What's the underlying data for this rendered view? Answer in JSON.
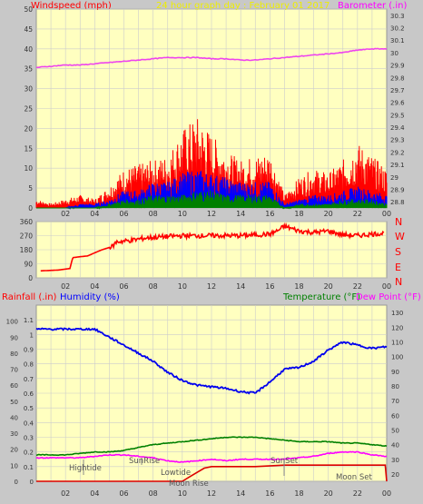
{
  "header": {
    "left_label": "Windspeed (mph)",
    "center_label": "24 hour graph day : February 01 2017",
    "right_label": "Barometer (.in)"
  },
  "colors": {
    "background": "#c8c8c8",
    "plot_bg": "#ffffc0",
    "grid": "#cccccc",
    "wind": "#ff0000",
    "gust_mid": "#0000ff",
    "wind_low": "#008000",
    "barometer": "#ee44ee",
    "humidity": "#0000ee",
    "temperature": "#008000",
    "dewpoint": "#ff00ff",
    "rainfall": "#dd0000",
    "label_red": "#ff0000",
    "label_yellow": "#eeee00",
    "label_magenta": "#ff00ff",
    "label_blue": "#0000ff",
    "label_green": "#008000"
  },
  "x_ticks": [
    "02",
    "04",
    "06",
    "08",
    "10",
    "12",
    "14",
    "16",
    "18",
    "20",
    "22",
    "00"
  ],
  "panel1": {
    "left_ticks": [
      "0",
      "5",
      "10",
      "15",
      "20",
      "25",
      "30",
      "35",
      "40",
      "45",
      "50"
    ],
    "right_ticks": [
      "28.8",
      "28.9",
      "29",
      "29.1",
      "29.2",
      "29.3",
      "29.4",
      "29.5",
      "29.6",
      "29.7",
      "29.8",
      "29.9",
      "30",
      "30.1",
      "30.2",
      "30.3"
    ]
  },
  "panel2": {
    "left_ticks": [
      "0",
      "90",
      "180",
      "270",
      "360"
    ],
    "compass": [
      "N",
      "W",
      "S",
      "E",
      "N"
    ]
  },
  "panel3": {
    "labels": {
      "rainfall": "Rainfall (.in)",
      "humidity": "Humidity (%)",
      "temperature": "Temperature (°F)",
      "dewpoint": "Dew Point (°F)"
    },
    "humidity_ticks": [
      "0",
      "10",
      "20",
      "30",
      "40",
      "50",
      "60",
      "70",
      "80",
      "90",
      "100"
    ],
    "rain_ticks": [
      "0",
      "0.1",
      "0.2",
      "0.3",
      "0.4",
      "0.5",
      "0.6",
      "0.7",
      "0.8",
      "0.9",
      "1",
      "1.1"
    ],
    "temp_ticks": [
      "20",
      "30",
      "40",
      "50",
      "60",
      "70",
      "80",
      "90",
      "100",
      "110",
      "120",
      "130"
    ],
    "annotations": {
      "hightide": "Hightide",
      "sunrise": "SunRise",
      "lowtide": "Lowtide",
      "moonrise": "Moon Rise",
      "sunset": "SunSet",
      "moonset": "Moon Set"
    }
  },
  "chart_data": [
    {
      "type": "line",
      "x_label": "hour",
      "y_left_label": "Windspeed (mph)",
      "y_right_label": "Barometer (.in)",
      "ylim_left": [
        0,
        50
      ],
      "ylim_right": [
        28.75,
        30.35
      ],
      "series": [
        {
          "name": "Barometer",
          "x": [
            0,
            1,
            2,
            3,
            4,
            5,
            6,
            7,
            8,
            9,
            10,
            11,
            12,
            13,
            14,
            15,
            16,
            17,
            18,
            19,
            20,
            21,
            22,
            23,
            24
          ],
          "values": [
            29.88,
            29.89,
            29.9,
            29.9,
            29.91,
            29.92,
            29.93,
            29.94,
            29.95,
            29.96,
            29.96,
            29.96,
            29.95,
            29.95,
            29.94,
            29.94,
            29.95,
            29.96,
            29.97,
            29.98,
            29.99,
            30.0,
            30.02,
            30.03,
            30.03
          ]
        },
        {
          "name": "Windspeed (peak)",
          "x": [
            0,
            1,
            2,
            3,
            4,
            5,
            6,
            7,
            8,
            9,
            10,
            11,
            12,
            13,
            14,
            15,
            16,
            17,
            18,
            19,
            20,
            21,
            22,
            23,
            24
          ],
          "values": [
            2,
            1,
            2,
            3,
            2,
            5,
            9,
            10,
            11,
            12,
            18,
            21,
            17,
            13,
            11,
            12,
            13,
            3,
            7,
            9,
            8,
            11,
            15,
            12,
            9
          ]
        },
        {
          "name": "Windspeed (average)",
          "x": [
            0,
            1,
            2,
            3,
            4,
            5,
            6,
            7,
            8,
            9,
            10,
            11,
            12,
            13,
            14,
            15,
            16,
            17,
            18,
            19,
            20,
            21,
            22,
            23,
            24
          ],
          "values": [
            0,
            0,
            0,
            1,
            1,
            2,
            4,
            4,
            6,
            6,
            8,
            9,
            8,
            7,
            6,
            6,
            6,
            1,
            2,
            3,
            3,
            4,
            5,
            4,
            3
          ]
        },
        {
          "name": "Windspeed (low)",
          "x": [
            0,
            1,
            2,
            3,
            4,
            5,
            6,
            7,
            8,
            9,
            10,
            11,
            12,
            13,
            14,
            15,
            16,
            17,
            18,
            19,
            20,
            21,
            22,
            23,
            24
          ],
          "values": [
            0,
            0,
            0,
            0,
            0,
            1,
            2,
            2,
            3,
            3,
            3,
            4,
            4,
            3,
            3,
            3,
            3,
            0,
            1,
            1,
            1,
            2,
            2,
            2,
            1
          ]
        }
      ]
    },
    {
      "type": "line",
      "y_label": "Wind direction",
      "ylim": [
        0,
        360
      ],
      "series": [
        {
          "name": "Wind direction",
          "x": [
            0.3,
            1.5,
            2.3,
            2.5,
            3.5,
            4.5,
            5.2,
            5.5,
            6.5,
            7.5,
            8.5,
            10,
            12,
            14,
            16,
            16.5,
            17,
            18,
            19,
            20,
            21,
            22,
            23,
            23.8
          ],
          "values": [
            45,
            50,
            60,
            130,
            140,
            180,
            200,
            230,
            240,
            255,
            262,
            270,
            270,
            270,
            280,
            300,
            330,
            300,
            290,
            300,
            275,
            270,
            280,
            285
          ]
        }
      ]
    },
    {
      "type": "line",
      "y_left_label": "Humidity (%)",
      "y_left2_label": "Rainfall (.in)",
      "y_right_label": "Temperature (°F)",
      "ylim_humidity": [
        0,
        100
      ],
      "ylim_rain": [
        0,
        1.1
      ],
      "ylim_temp": [
        20,
        130
      ],
      "series": [
        {
          "name": "Humidity",
          "x": [
            0,
            1,
            2,
            3,
            4,
            5,
            6,
            7,
            8,
            9,
            10,
            11,
            12,
            13,
            14,
            15,
            16,
            17,
            18,
            19,
            20,
            21,
            22,
            23,
            24
          ],
          "values": [
            95,
            95,
            95,
            95,
            95,
            90,
            85,
            80,
            75,
            68,
            63,
            60,
            59,
            58,
            56,
            55,
            62,
            70,
            71,
            75,
            82,
            87,
            85,
            83,
            84
          ]
        },
        {
          "name": "Temperature",
          "x": [
            0,
            1,
            2,
            3,
            4,
            5,
            6,
            7,
            8,
            9,
            10,
            11,
            12,
            13,
            14,
            15,
            16,
            17,
            18,
            19,
            20,
            21,
            22,
            23,
            24
          ],
          "values": [
            33,
            33,
            33,
            34,
            35,
            35,
            36,
            38,
            40,
            41,
            42,
            43,
            44,
            45,
            45,
            45,
            44,
            43,
            42,
            42,
            42,
            41,
            41,
            40,
            39
          ]
        },
        {
          "name": "Dew Point",
          "x": [
            0,
            1,
            2,
            3,
            4,
            5,
            6,
            7,
            8,
            9,
            10,
            11,
            12,
            13,
            14,
            15,
            16,
            17,
            18,
            19,
            20,
            21,
            22,
            23,
            24
          ],
          "values": [
            31,
            31,
            31,
            31,
            32,
            33,
            33,
            32,
            31,
            29,
            28,
            29,
            30,
            29,
            30,
            30,
            30,
            30,
            31,
            32,
            34,
            35,
            35,
            33,
            32
          ]
        },
        {
          "name": "Rainfall",
          "x": [
            0,
            10,
            10.5,
            11,
            11.5,
            12,
            15,
            17,
            20,
            23.9,
            24
          ],
          "values": [
            0,
            0,
            0.03,
            0.06,
            0.09,
            0.1,
            0.1,
            0.11,
            0.11,
            0.11,
            0
          ]
        }
      ]
    }
  ]
}
